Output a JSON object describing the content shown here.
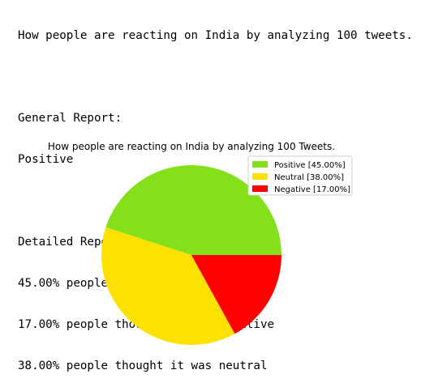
{
  "report": {
    "heading": "How people are reacting on India by analyzing 100 tweets.",
    "general_label": "General Report:",
    "general_value": "Positive",
    "detailed_label": "Detailed Report:",
    "detailed_lines": [
      "45.00% people thought it was positive",
      "17.00% people thought it was negative",
      "38.00% people thought it was neutral"
    ]
  },
  "chart_data": {
    "type": "pie",
    "title": "How people are reacting on India by analyzing 100 Tweets.",
    "legend_position": "upper-right",
    "slices": [
      {
        "label": "Positive [45.00%]",
        "value": 45.0,
        "color": "#84e019"
      },
      {
        "label": "Neutral [38.00%]",
        "value": 38.0,
        "color": "#fde100"
      },
      {
        "label": "Negative [17.00%]",
        "value": 17.0,
        "color": "#ff0000"
      }
    ]
  }
}
